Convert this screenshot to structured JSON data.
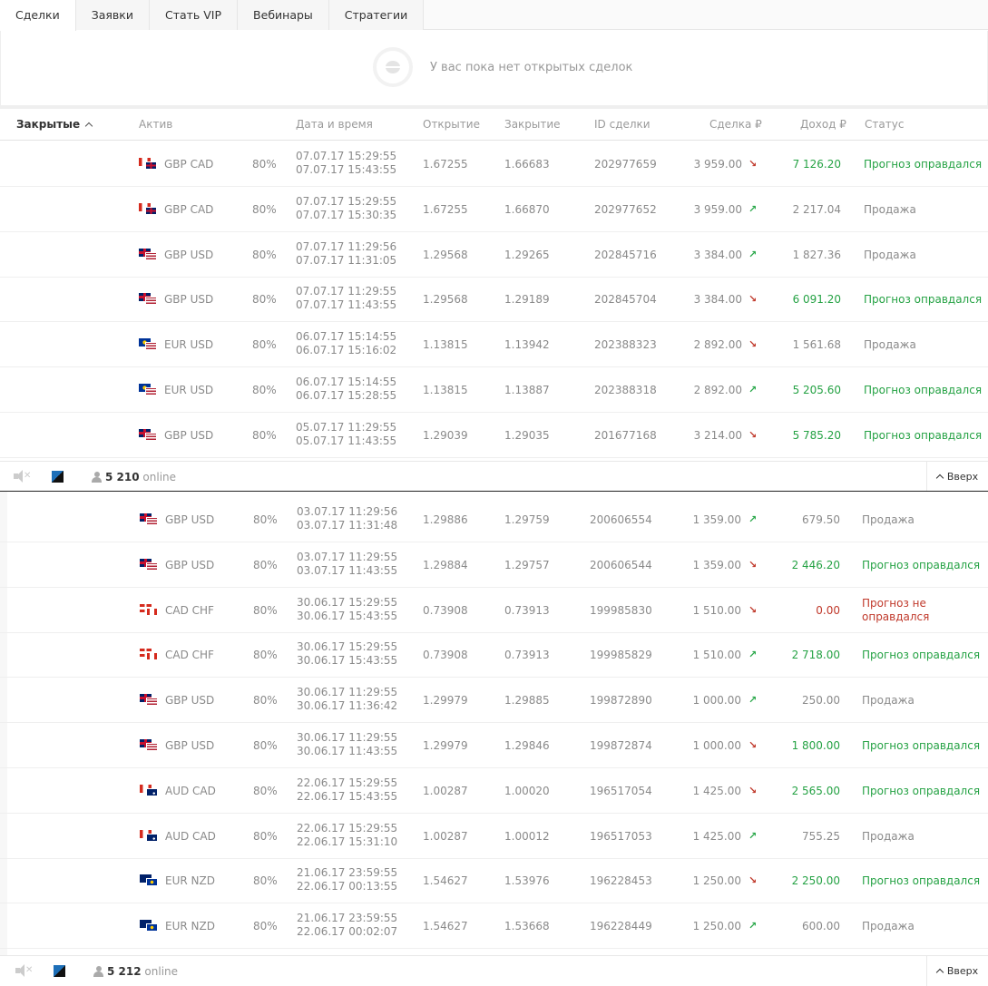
{
  "tabs": [
    "Сделки",
    "Заявки",
    "Стать VIP",
    "Вебинары",
    "Стратегии"
  ],
  "empty_message": "У вас пока нет открытых сделок",
  "header": {
    "sort_label": "Закрытые",
    "asset": "Актив",
    "datetime": "Дата и время",
    "open": "Открытие",
    "close": "Закрытие",
    "deal_id": "ID сделки",
    "deal": "Сделка ₽",
    "income": "Доход ₽",
    "status": "Статус"
  },
  "colors": {
    "win": "#25a244",
    "lose": "#c0392b",
    "text": "#8a8a8a"
  },
  "rows_top": [
    {
      "flags": [
        "ca",
        "gb"
      ],
      "asset": "GBP CAD",
      "pct": "80%",
      "d1": "07.07.17 15:29:55",
      "d2": "07.07.17 15:43:55",
      "open": "1.67255",
      "close": "1.66683",
      "id": "202977659",
      "deal": "3 959.00",
      "dir": "down",
      "income": "7 126.20",
      "status": "Прогноз оправдался",
      "state": "win"
    },
    {
      "flags": [
        "ca",
        "gb"
      ],
      "asset": "GBP CAD",
      "pct": "80%",
      "d1": "07.07.17 15:29:55",
      "d2": "07.07.17 15:30:35",
      "open": "1.67255",
      "close": "1.66870",
      "id": "202977652",
      "deal": "3 959.00",
      "dir": "up",
      "income": "2 217.04",
      "status": "Продажа",
      "state": "sell"
    },
    {
      "flags": [
        "gb",
        "us"
      ],
      "asset": "GBP USD",
      "pct": "80%",
      "d1": "07.07.17 11:29:56",
      "d2": "07.07.17 11:31:05",
      "open": "1.29568",
      "close": "1.29265",
      "id": "202845716",
      "deal": "3 384.00",
      "dir": "up",
      "income": "1 827.36",
      "status": "Продажа",
      "state": "sell"
    },
    {
      "flags": [
        "gb",
        "us"
      ],
      "asset": "GBP USD",
      "pct": "80%",
      "d1": "07.07.17 11:29:55",
      "d2": "07.07.17 11:43:55",
      "open": "1.29568",
      "close": "1.29189",
      "id": "202845704",
      "deal": "3 384.00",
      "dir": "down",
      "income": "6 091.20",
      "status": "Прогноз оправдался",
      "state": "win"
    },
    {
      "flags": [
        "eu",
        "us"
      ],
      "asset": "EUR USD",
      "pct": "80%",
      "d1": "06.07.17 15:14:55",
      "d2": "06.07.17 15:16:02",
      "open": "1.13815",
      "close": "1.13942",
      "id": "202388323",
      "deal": "2 892.00",
      "dir": "down",
      "income": "1 561.68",
      "status": "Продажа",
      "state": "sell"
    },
    {
      "flags": [
        "eu",
        "us"
      ],
      "asset": "EUR USD",
      "pct": "80%",
      "d1": "06.07.17 15:14:55",
      "d2": "06.07.17 15:28:55",
      "open": "1.13815",
      "close": "1.13887",
      "id": "202388318",
      "deal": "2 892.00",
      "dir": "up",
      "income": "5 205.60",
      "status": "Прогноз оправдался",
      "state": "win"
    },
    {
      "flags": [
        "gb",
        "us"
      ],
      "asset": "GBP USD",
      "pct": "80%",
      "d1": "05.07.17 11:29:55",
      "d2": "05.07.17 11:43:55",
      "open": "1.29039",
      "close": "1.29035",
      "id": "201677168",
      "deal": "3 214.00",
      "dir": "down",
      "income": "5 785.20",
      "status": "Прогноз оправдался",
      "state": "win"
    }
  ],
  "footer_top": {
    "online_count": "5 210",
    "online_label": "online",
    "up_label": "Вверх"
  },
  "rows_bottom": [
    {
      "flags": [
        "gb",
        "us"
      ],
      "asset": "GBP USD",
      "pct": "80%",
      "d1": "03.07.17 11:29:56",
      "d2": "03.07.17 11:31:48",
      "open": "1.29886",
      "close": "1.29759",
      "id": "200606554",
      "deal": "1 359.00",
      "dir": "up",
      "income": "679.50",
      "status": "Продажа",
      "state": "sell"
    },
    {
      "flags": [
        "gb",
        "us"
      ],
      "asset": "GBP USD",
      "pct": "80%",
      "d1": "03.07.17 11:29:55",
      "d2": "03.07.17 11:43:55",
      "open": "1.29884",
      "close": "1.29757",
      "id": "200606544",
      "deal": "1 359.00",
      "dir": "down",
      "income": "2 446.20",
      "status": "Прогноз оправдался",
      "state": "win"
    },
    {
      "flags": [
        "ch",
        "ca"
      ],
      "asset": "CAD CHF",
      "pct": "80%",
      "d1": "30.06.17 15:29:55",
      "d2": "30.06.17 15:43:55",
      "open": "0.73908",
      "close": "0.73913",
      "id": "199985830",
      "deal": "1 510.00",
      "dir": "down",
      "income": "0.00",
      "status": "Прогноз не оправдался",
      "state": "lose"
    },
    {
      "flags": [
        "ch",
        "ca"
      ],
      "asset": "CAD CHF",
      "pct": "80%",
      "d1": "30.06.17 15:29:55",
      "d2": "30.06.17 15:43:55",
      "open": "0.73908",
      "close": "0.73913",
      "id": "199985829",
      "deal": "1 510.00",
      "dir": "up",
      "income": "2 718.00",
      "status": "Прогноз оправдался",
      "state": "win"
    },
    {
      "flags": [
        "gb",
        "us"
      ],
      "asset": "GBP USD",
      "pct": "80%",
      "d1": "30.06.17 11:29:55",
      "d2": "30.06.17 11:36:42",
      "open": "1.29979",
      "close": "1.29885",
      "id": "199872890",
      "deal": "1 000.00",
      "dir": "up",
      "income": "250.00",
      "status": "Продажа",
      "state": "sell"
    },
    {
      "flags": [
        "gb",
        "us"
      ],
      "asset": "GBP USD",
      "pct": "80%",
      "d1": "30.06.17 11:29:55",
      "d2": "30.06.17 11:43:55",
      "open": "1.29979",
      "close": "1.29846",
      "id": "199872874",
      "deal": "1 000.00",
      "dir": "down",
      "income": "1 800.00",
      "status": "Прогноз оправдался",
      "state": "win"
    },
    {
      "flags": [
        "ca",
        "au"
      ],
      "asset": "AUD CAD",
      "pct": "80%",
      "d1": "22.06.17 15:29:55",
      "d2": "22.06.17 15:43:55",
      "open": "1.00287",
      "close": "1.00020",
      "id": "196517054",
      "deal": "1 425.00",
      "dir": "down",
      "income": "2 565.00",
      "status": "Прогноз оправдался",
      "state": "win"
    },
    {
      "flags": [
        "ca",
        "au"
      ],
      "asset": "AUD CAD",
      "pct": "80%",
      "d1": "22.06.17 15:29:55",
      "d2": "22.06.17 15:31:10",
      "open": "1.00287",
      "close": "1.00012",
      "id": "196517053",
      "deal": "1 425.00",
      "dir": "up",
      "income": "755.25",
      "status": "Продажа",
      "state": "sell"
    },
    {
      "flags": [
        "nz",
        "eu"
      ],
      "asset": "EUR NZD",
      "pct": "80%",
      "d1": "21.06.17 23:59:55",
      "d2": "22.06.17 00:13:55",
      "open": "1.54627",
      "close": "1.53976",
      "id": "196228453",
      "deal": "1 250.00",
      "dir": "down",
      "income": "2 250.00",
      "status": "Прогноз оправдался",
      "state": "win"
    },
    {
      "flags": [
        "nz",
        "eu"
      ],
      "asset": "EUR NZD",
      "pct": "80%",
      "d1": "21.06.17 23:59:55",
      "d2": "22.06.17 00:02:07",
      "open": "1.54627",
      "close": "1.53668",
      "id": "196228449",
      "deal": "1 250.00",
      "dir": "up",
      "income": "600.00",
      "status": "Продажа",
      "state": "sell"
    }
  ],
  "footer_bottom": {
    "online_count": "5 212",
    "online_label": "online",
    "up_label": "Вверх"
  }
}
